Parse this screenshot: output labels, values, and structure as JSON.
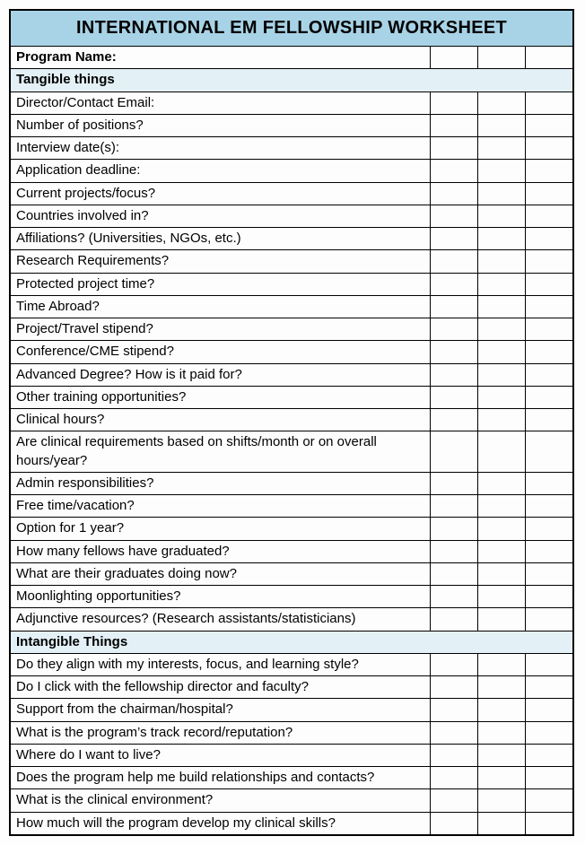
{
  "title": "INTERNATIONAL EM FELLOWSHIP WORKSHEET",
  "program_label": "Program Name:",
  "colors": {
    "title_bg": "#a8d3e6",
    "section_bg": "#e3f0f6",
    "border": "#000000"
  },
  "sections": [
    {
      "heading": "Tangible things",
      "rows": [
        "Director/Contact Email:",
        "Number of positions?",
        "Interview date(s):",
        "Application deadline:",
        "Current projects/focus?",
        "Countries involved in?",
        "Affiliations? (Universities, NGOs, etc.)",
        "Research Requirements?",
        "Protected project time?",
        "Time Abroad?",
        "Project/Travel stipend?",
        "Conference/CME stipend?",
        "Advanced Degree? How is it paid for?",
        "Other training opportunities?",
        "Clinical hours?",
        "Are clinical requirements based on shifts/month or on overall hours/year?",
        "Admin responsibilities?",
        "Free time/vacation?",
        "Option for 1 year?",
        "How many fellows have graduated?",
        "What are their graduates doing now?",
        "Moonlighting opportunities?",
        "Adjunctive resources? (Research assistants/statisticians)"
      ]
    },
    {
      "heading": "Intangible Things",
      "rows": [
        "Do they align with my interests, focus, and learning style?",
        "Do I click with the fellowship director and faculty?",
        "Support from the chairman/hospital?",
        "What is the program’s track record/reputation?",
        "Where do I want to live?",
        "Does the program help me build relationships and contacts?",
        "What is the clinical environment?",
        "How much will the program develop my clinical skills?"
      ]
    }
  ]
}
